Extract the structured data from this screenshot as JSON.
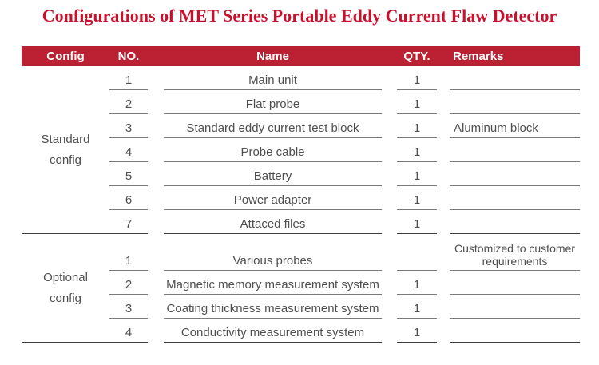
{
  "title": "Configurations of MET Series Portable Eddy Current Flaw Detector",
  "colors": {
    "title_red": "#C8112C",
    "header_bg": "#BB2133",
    "text_gray": "#4F4F4F",
    "row_line": "#7A7A7A",
    "section_line": "#3F3F3F"
  },
  "header": {
    "config": "Config",
    "no": "NO.",
    "name": "Name",
    "qty": "QTY.",
    "remarks": "Remarks"
  },
  "sections": [
    {
      "label_lines": [
        "Standard",
        "config"
      ],
      "rows": [
        {
          "no": "1",
          "name": "Main unit",
          "qty": "1",
          "remarks": ""
        },
        {
          "no": "2",
          "name": "Flat probe",
          "qty": "1",
          "remarks": ""
        },
        {
          "no": "3",
          "name": "Standard eddy current test block",
          "qty": "1",
          "remarks": "Aluminum block"
        },
        {
          "no": "4",
          "name": "Probe cable",
          "qty": "1",
          "remarks": ""
        },
        {
          "no": "5",
          "name": "Battery",
          "qty": "1",
          "remarks": ""
        },
        {
          "no": "6",
          "name": "Power adapter",
          "qty": "1",
          "remarks": ""
        },
        {
          "no": "7",
          "name": "Attaced files",
          "qty": "1",
          "remarks": ""
        }
      ]
    },
    {
      "label_lines": [
        "Optional",
        "config"
      ],
      "rows": [
        {
          "no": "1",
          "name": "Various probes",
          "qty": "",
          "remarks": "Customized to customer requirements"
        },
        {
          "no": "2",
          "name": "Magnetic memory measurement system",
          "qty": "1",
          "remarks": ""
        },
        {
          "no": "3",
          "name": "Coating thickness measurement system",
          "qty": "1",
          "remarks": ""
        },
        {
          "no": "4",
          "name": "Conductivity measurement system",
          "qty": "1",
          "remarks": ""
        }
      ]
    }
  ]
}
